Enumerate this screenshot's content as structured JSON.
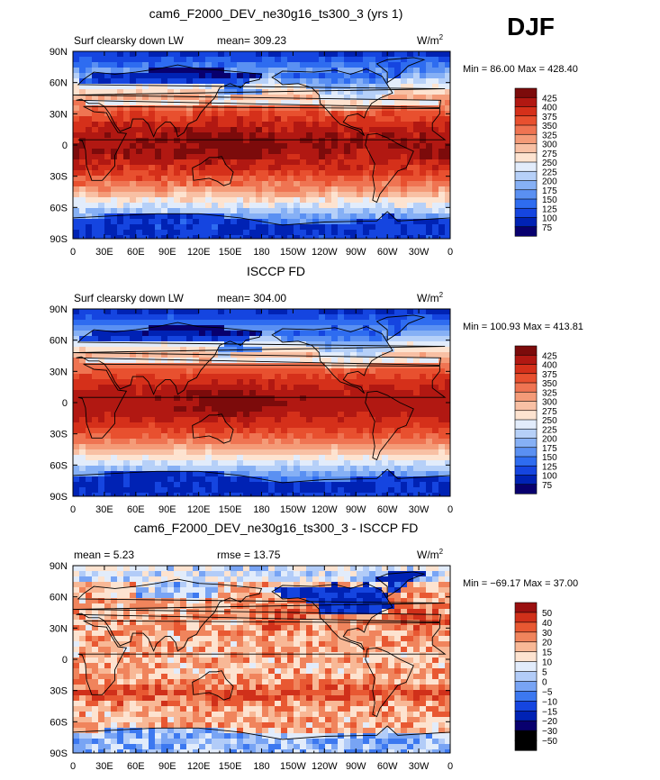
{
  "season": "DJF",
  "palette": {
    "abs": [
      "#08006e",
      "#0022b4",
      "#1545e0",
      "#2e6cf0",
      "#5a90f2",
      "#86b0f5",
      "#b6d0f8",
      "#e2ecfb",
      "#fde3d0",
      "#f8c0a4",
      "#f49b78",
      "#ef7452",
      "#e8502f",
      "#d5301a",
      "#b11812",
      "#7c0b0b"
    ],
    "diff": [
      "#08006e",
      "#0022b4",
      "#1545e0",
      "#3c78f0",
      "#78a4f4",
      "#b2ccf8",
      "#e2ecfb",
      "#fde3d0",
      "#f8b896",
      "#f0845c",
      "#e85832",
      "#d0301a",
      "#9a1010"
    ]
  },
  "chart_data": [
    {
      "type": "heatmap",
      "title": "cam6_F2000_DEV_ne30g16_ts300_3 (yrs 1)",
      "left_label": "Surf clearsky down LW",
      "center_label": "mean= 309.23",
      "units": "W/m",
      "units_sup": "2",
      "minmax": "Min =  86.00 Max = 428.40",
      "x_ticks": [
        "0",
        "30E",
        "60E",
        "90E",
        "120E",
        "150E",
        "180",
        "150W",
        "120W",
        "90W",
        "60W",
        "30W",
        "0"
      ],
      "y_ticks": [
        "90N",
        "60N",
        "30N",
        "0",
        "30S",
        "60S",
        "90S"
      ],
      "colorbar": {
        "levels": [
          "425",
          "400",
          "375",
          "350",
          "325",
          "300",
          "275",
          "250",
          "225",
          "200",
          "175",
          "150",
          "125",
          "100",
          "75"
        ],
        "scale": "abs"
      },
      "field": "model"
    },
    {
      "type": "heatmap",
      "title": "ISCCP FD",
      "left_label": "Surf clearsky down LW",
      "center_label": "mean= 304.00",
      "units": "W/m",
      "units_sup": "2",
      "minmax": "Min = 100.93 Max = 413.81",
      "x_ticks": [
        "0",
        "30E",
        "60E",
        "90E",
        "120E",
        "150E",
        "180",
        "150W",
        "120W",
        "90W",
        "60W",
        "30W",
        "0"
      ],
      "y_ticks": [
        "90N",
        "60N",
        "30N",
        "0",
        "30S",
        "60S",
        "90S"
      ],
      "colorbar": {
        "levels": [
          "425",
          "400",
          "375",
          "350",
          "325",
          "300",
          "275",
          "250",
          "225",
          "200",
          "175",
          "150",
          "125",
          "100",
          "75"
        ],
        "scale": "abs"
      },
      "field": "obs"
    },
    {
      "type": "heatmap",
      "title": "cam6_F2000_DEV_ne30g16_ts300_3 - ISCCP FD",
      "left_label": "mean =    5.23",
      "center_label": "rmse =   13.75",
      "units": "W/m",
      "units_sup": "2",
      "minmax": "Min = −69.17 Max =  37.00",
      "x_ticks": [
        "0",
        "30E",
        "60E",
        "90E",
        "120E",
        "150E",
        "180",
        "150W",
        "120W",
        "90W",
        "60W",
        "30W",
        "0"
      ],
      "y_ticks": [
        "90N",
        "60N",
        "30N",
        "0",
        "30S",
        "60S",
        "90S"
      ],
      "colorbar": {
        "levels": [
          "50",
          "40",
          "30",
          "20",
          "15",
          "10",
          "5",
          "0",
          "−5",
          "−10",
          "−15",
          "−20",
          "−30",
          "−50"
        ],
        "scale": "diff"
      },
      "field": "diff"
    }
  ]
}
